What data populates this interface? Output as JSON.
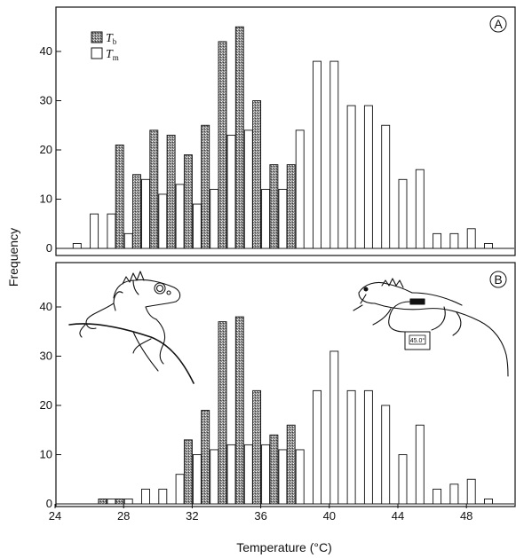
{
  "chart_data": [
    {
      "panel": "A",
      "type": "bar",
      "x": [
        25,
        26,
        27,
        28,
        29,
        30,
        31,
        32,
        33,
        34,
        35,
        36,
        37,
        38,
        39,
        40,
        41,
        42,
        43,
        44,
        45,
        46,
        47,
        48,
        49
      ],
      "series": [
        {
          "name": "Tb",
          "values": [
            0,
            0,
            0,
            21,
            15,
            24,
            23,
            19,
            25,
            42,
            45,
            30,
            17,
            17,
            0,
            0,
            0,
            0,
            0,
            0,
            0,
            0,
            0,
            0,
            0
          ]
        },
        {
          "name": "Tm",
          "values": [
            1,
            7,
            7,
            3,
            14,
            11,
            13,
            9,
            12,
            23,
            24,
            12,
            12,
            24,
            38,
            38,
            29,
            29,
            25,
            14,
            16,
            3,
            3,
            4,
            1
          ]
        }
      ],
      "ylim": [
        0,
        50
      ],
      "yticks": [
        0,
        10,
        20,
        30,
        40
      ],
      "legend": "top-left"
    },
    {
      "panel": "B",
      "type": "bar",
      "x": [
        25,
        26,
        27,
        28,
        29,
        30,
        31,
        32,
        33,
        34,
        35,
        36,
        37,
        38,
        39,
        40,
        41,
        42,
        43,
        44,
        45,
        46,
        47,
        48,
        49
      ],
      "series": [
        {
          "name": "Tb",
          "values": [
            0,
            0,
            1,
            1,
            0,
            0,
            0,
            13,
            19,
            37,
            38,
            23,
            14,
            16,
            0,
            0,
            0,
            0,
            0,
            0,
            0,
            0,
            0,
            0,
            0
          ]
        },
        {
          "name": "Tm",
          "values": [
            0,
            0,
            1,
            1,
            3,
            3,
            6,
            10,
            11,
            12,
            12,
            12,
            11,
            11,
            23,
            31,
            23,
            23,
            20,
            10,
            16,
            3,
            4,
            5,
            1
          ]
        }
      ],
      "ylim": [
        0,
        50
      ],
      "yticks": [
        0,
        10,
        20,
        30,
        40
      ],
      "xticks": [
        24,
        28,
        32,
        36,
        40,
        44,
        48
      ]
    }
  ],
  "labels": {
    "panel_a": "A",
    "panel_b": "B",
    "legend_tb_main": "T",
    "legend_tb_sub": "b",
    "legend_tm_main": "T",
    "legend_tm_sub": "m",
    "ylabel": "Frequency",
    "xlabel": "Temperature (°C)"
  },
  "thermometer_display": "45.0°"
}
